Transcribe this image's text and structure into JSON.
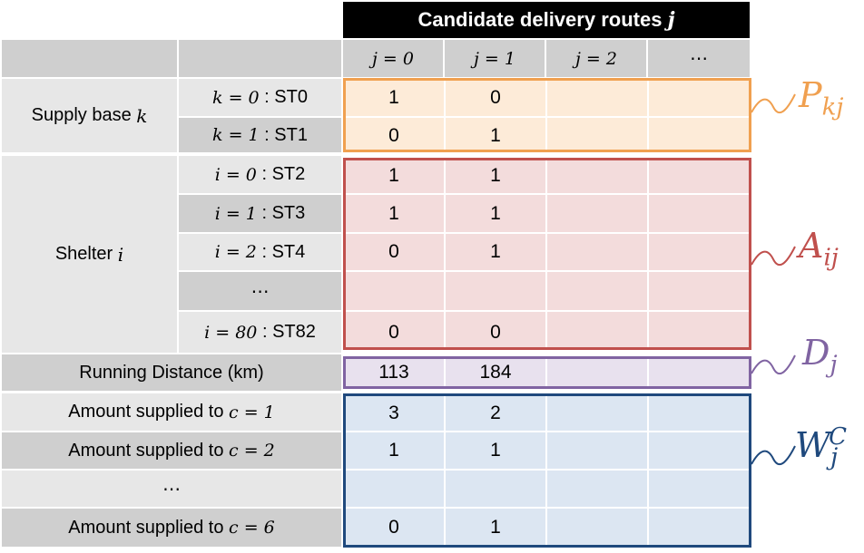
{
  "header": {
    "title": "Candidate delivery routes",
    "title_var": "j",
    "columns": [
      "j = 0",
      "j = 1",
      "j = 2",
      "⋯"
    ]
  },
  "rows": {
    "supply_base": {
      "group_label": "Supply base",
      "group_var": "k",
      "items": [
        {
          "label": "k = 0",
          "station": "ST0",
          "values": [
            "1",
            "0",
            "",
            ""
          ]
        },
        {
          "label": "k = 1",
          "station": "ST1",
          "values": [
            "0",
            "1",
            "",
            ""
          ]
        }
      ]
    },
    "shelter": {
      "group_label": "Shelter",
      "group_var": "i",
      "items": [
        {
          "label": "i = 0",
          "station": "ST2",
          "values": [
            "1",
            "1",
            "",
            ""
          ]
        },
        {
          "label": "i = 1",
          "station": "ST3",
          "values": [
            "1",
            "1",
            "",
            ""
          ]
        },
        {
          "label": "i = 2",
          "station": "ST4",
          "values": [
            "0",
            "1",
            "",
            ""
          ]
        },
        {
          "label": "⋯",
          "station": "",
          "values": [
            "",
            "",
            "",
            ""
          ]
        },
        {
          "label": "i = 80",
          "station": "ST82",
          "values": [
            "0",
            "0",
            "",
            ""
          ]
        }
      ]
    },
    "distance": {
      "label": "Running Distance (km)",
      "values": [
        "113",
        "184",
        "",
        ""
      ]
    },
    "amounts": [
      {
        "label": "Amount supplied to",
        "var": "c = 1",
        "values": [
          "3",
          "2",
          "",
          ""
        ]
      },
      {
        "label": "Amount supplied to",
        "var": "c = 2",
        "values": [
          "1",
          "1",
          "",
          ""
        ]
      },
      {
        "label": "⋯",
        "var": "",
        "values": [
          "",
          "",
          "",
          ""
        ]
      },
      {
        "label": "Amount supplied to",
        "var": "c = 6",
        "values": [
          "0",
          "1",
          "",
          ""
        ]
      }
    ]
  },
  "matrices": [
    {
      "symbol": "P",
      "sub": "kj",
      "sup": "",
      "color": "#f0a050"
    },
    {
      "symbol": "A",
      "sub": "ij",
      "sup": "",
      "color": "#c0504d"
    },
    {
      "symbol": "D",
      "sub": "j",
      "sup": "",
      "color": "#8064a2"
    },
    {
      "symbol": "W",
      "sub": "j",
      "sup": "C",
      "color": "#1f497d"
    }
  ],
  "colors": {
    "supply_fill": "#fdebd8",
    "shelter_fill": "#f3dcdc",
    "distance_fill": "#e8e1ee",
    "amount_fill": "#dce6f2"
  }
}
